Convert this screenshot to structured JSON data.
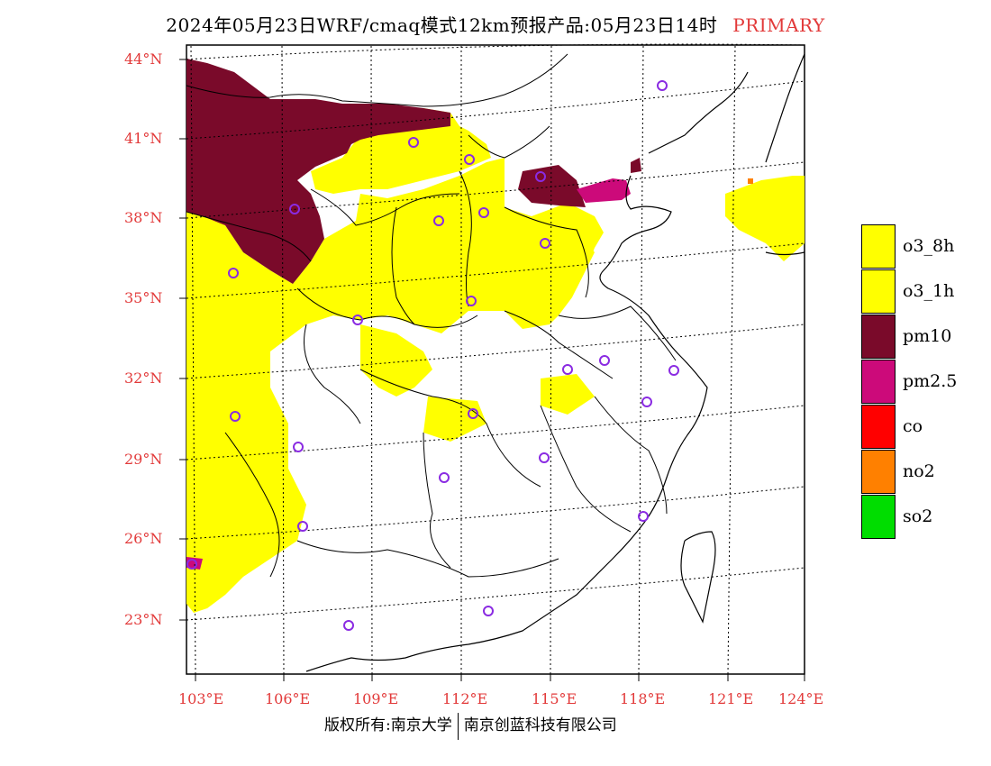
{
  "title": {
    "text": "2024年05月23日WRF/cmaq模式12km预报产品:05月23日14时",
    "tag": "PRIMARY"
  },
  "axes": {
    "lat_labels": [
      "44°N",
      "41°N",
      "38°N",
      "35°N",
      "32°N",
      "29°N",
      "26°N",
      "23°N"
    ],
    "lon_labels": [
      "103°E",
      "106°E",
      "109°E",
      "112°E",
      "115°E",
      "118°E",
      "121°E",
      "124°E"
    ]
  },
  "legend": [
    {
      "label": "o3_8h",
      "color": "#ffff00"
    },
    {
      "label": "o3_1h",
      "color": "#ffff00"
    },
    {
      "label": "pm10",
      "color": "#7a0a2a"
    },
    {
      "label": "pm2.5",
      "color": "#cc0a7a"
    },
    {
      "label": "co",
      "color": "#ff0000"
    },
    {
      "label": "no2",
      "color": "#ff8000"
    },
    {
      "label": "so2",
      "color": "#00dd00"
    }
  ],
  "footer": {
    "left": "版权所有:南京大学",
    "right": "南京创蓝科技有限公司"
  },
  "colors": {
    "axis_label": "#e23a3a",
    "station_marker": "#8a2be2",
    "o3": "#ffff00",
    "pm10": "#7a0a2a",
    "pm25": "#cc0a7a",
    "no2": "#ff8000"
  }
}
